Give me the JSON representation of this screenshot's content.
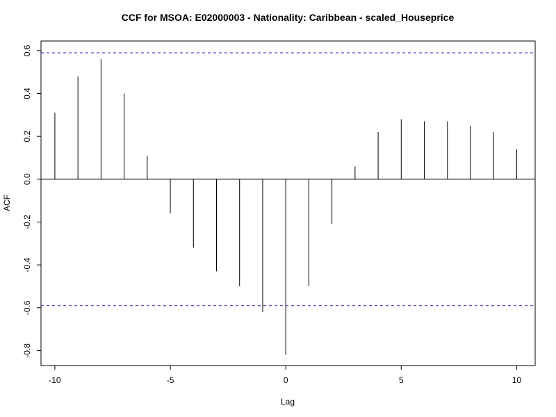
{
  "chart_data": {
    "type": "bar",
    "title": "CCF for MSOA: E02000003 - Nationality: Caribbean - scaled_Houseprice",
    "xlabel": "Lag",
    "ylabel": "ACF",
    "xlim": [
      -10.6,
      10.8
    ],
    "ylim": [
      -0.87,
      0.645
    ],
    "x_ticks": [
      -10,
      -5,
      0,
      5,
      10
    ],
    "x_tick_labels": [
      "-10",
      "-5",
      "0",
      "5",
      "10"
    ],
    "y_ticks": [
      -0.8,
      -0.6,
      -0.4,
      -0.2,
      0.0,
      0.2,
      0.4,
      0.6
    ],
    "y_tick_labels": [
      "-0.8",
      "-0.6",
      "-0.4",
      "-0.2",
      "0.0",
      "0.2",
      "0.4",
      "0.6"
    ],
    "lags": [
      -10,
      -9,
      -8,
      -7,
      -6,
      -5,
      -4,
      -3,
      -2,
      -1,
      0,
      1,
      2,
      3,
      4,
      5,
      6,
      7,
      8,
      9,
      10
    ],
    "values": [
      0.31,
      0.48,
      0.56,
      0.4,
      0.11,
      -0.16,
      -0.32,
      -0.43,
      -0.5,
      -0.62,
      -0.82,
      -0.5,
      -0.21,
      0.06,
      0.22,
      0.28,
      0.27,
      0.27,
      0.25,
      0.22,
      0.14
    ],
    "confidence_limit": 0.59,
    "colors": {
      "bars": "#000000",
      "confidence": "#2323c8",
      "axis": "#000000"
    }
  }
}
